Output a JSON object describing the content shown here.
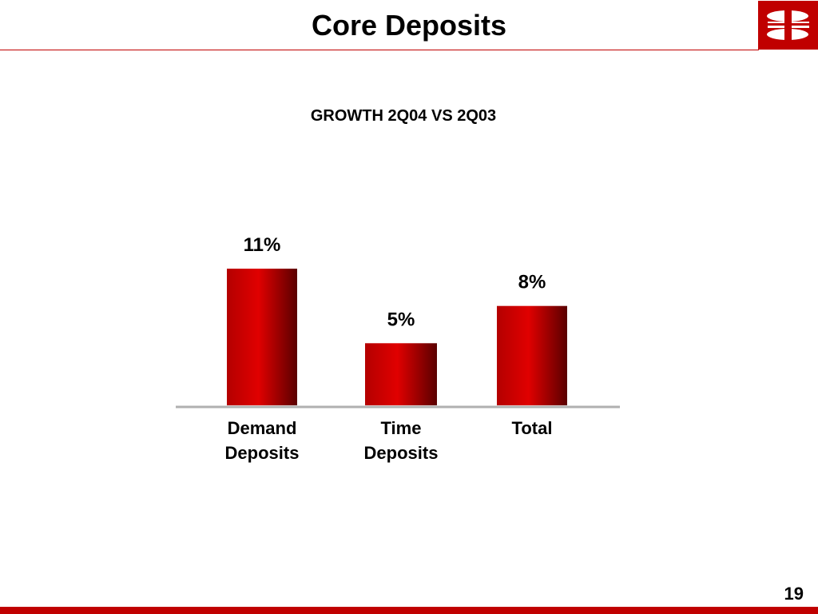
{
  "slide": {
    "title": "Core Deposits",
    "page_number": "19",
    "logo_icon": "bank-logo-icon",
    "accent_color": "#c00000"
  },
  "chart_data": {
    "type": "bar",
    "title": "GROWTH 2Q04 VS 2Q03",
    "categories": [
      [
        "Demand",
        "Deposits"
      ],
      [
        "Time",
        "Deposits"
      ],
      [
        "Total"
      ]
    ],
    "values": [
      11,
      5,
      8
    ],
    "value_labels": [
      "11%",
      "5%",
      "8%"
    ],
    "ylim": [
      0,
      13
    ],
    "grid": false,
    "bar_color": "#c00000"
  }
}
